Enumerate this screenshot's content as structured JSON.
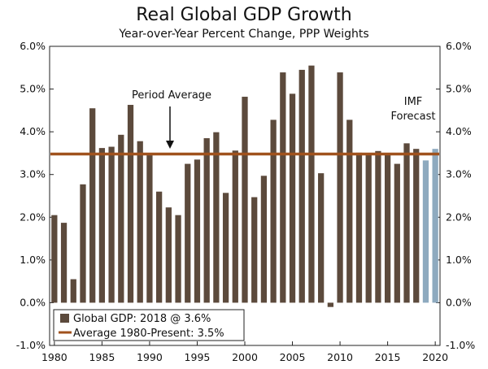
{
  "chart_data": {
    "type": "bar",
    "title": "Real Global GDP Growth",
    "subtitle": "Year-over-Year Percent Change, PPP Weights",
    "ylim": [
      -1.0,
      6.0
    ],
    "y_ticks": [
      "6.0%",
      "5.0%",
      "4.0%",
      "3.0%",
      "2.0%",
      "1.0%",
      "0.0%",
      "-1.0%"
    ],
    "x_ticks": [
      "1980",
      "1985",
      "1990",
      "1995",
      "2000",
      "2005",
      "2010",
      "2015",
      "2020"
    ],
    "series": [
      {
        "name": "Global GDP: 2018 @ 3.6%",
        "color": "#5c4a3c",
        "x": [
          1980,
          1981,
          1982,
          1983,
          1984,
          1985,
          1986,
          1987,
          1988,
          1989,
          1990,
          1991,
          1992,
          1993,
          1994,
          1995,
          1996,
          1997,
          1998,
          1999,
          2000,
          2001,
          2002,
          2003,
          2004,
          2005,
          2006,
          2007,
          2008,
          2009,
          2010,
          2011,
          2012,
          2013,
          2014,
          2015,
          2016,
          2017,
          2018
        ],
        "values": [
          2.05,
          1.87,
          0.55,
          2.77,
          4.55,
          3.62,
          3.65,
          3.93,
          4.63,
          3.78,
          3.45,
          2.6,
          2.23,
          2.05,
          3.25,
          3.35,
          3.85,
          3.99,
          2.57,
          3.56,
          4.82,
          2.47,
          2.97,
          4.28,
          5.39,
          4.89,
          5.45,
          5.55,
          3.03,
          -0.1,
          5.39,
          4.28,
          3.51,
          3.48,
          3.55,
          3.46,
          3.25,
          3.73,
          3.6
        ]
      },
      {
        "name": "IMF Forecast",
        "color": "#8eaabf",
        "x": [
          2019,
          2020
        ],
        "values": [
          3.33,
          3.6
        ]
      },
      {
        "name": "Average 1980-Present: 3.5%",
        "type": "line",
        "color": "#a0521d",
        "value": 3.48
      }
    ],
    "annotations": {
      "period_average": "Period Average",
      "imf_line1": "IMF",
      "imf_line2": "Forecast"
    },
    "legend": {
      "placement": "bottom-left",
      "items": [
        "Global GDP: 2018 @ 3.6%",
        "Average 1980-Present: 3.5%"
      ]
    }
  }
}
